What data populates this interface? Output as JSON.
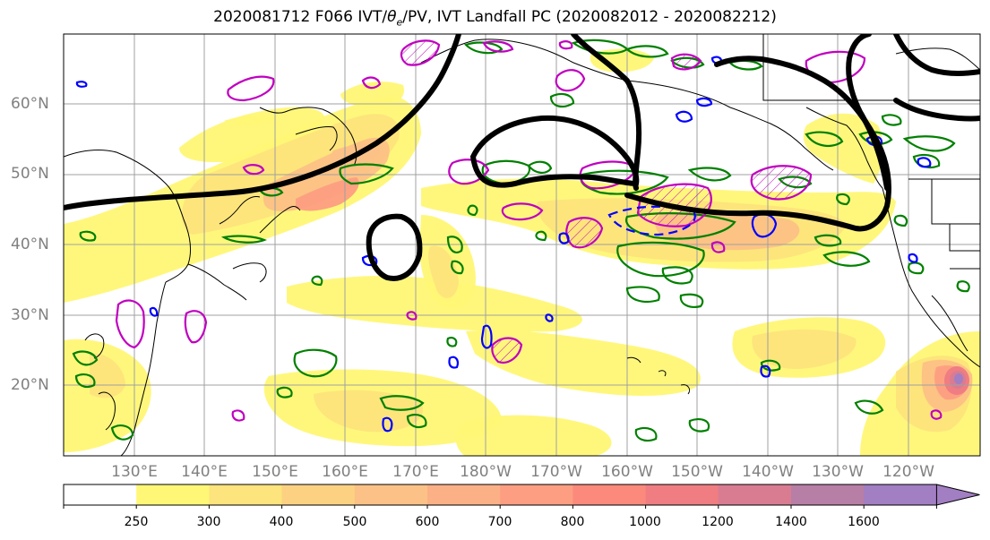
{
  "title": "2020081712 F066 IVT/θe/PV, IVT Landfall PC (2020082012 - 2020082212)",
  "title_parts": {
    "pre": "2020081712 F066 IVT/",
    "theta": "θ",
    "sub": "e",
    "post": "/PV, IVT Landfall PC (2020082012 - 2020082212)"
  },
  "latitude_labels": [
    "60°N",
    "50°N",
    "40°N",
    "30°N",
    "20°N"
  ],
  "longitude_labels": [
    "130°E",
    "140°E",
    "150°E",
    "160°E",
    "170°E",
    "180°W",
    "170°W",
    "160°W",
    "150°W",
    "140°W",
    "130°W",
    "120°W"
  ],
  "colorbar": {
    "ticks": [
      "250",
      "300",
      "400",
      "500",
      "600",
      "700",
      "800",
      "1000",
      "1200",
      "1400",
      "1600"
    ],
    "colors": [
      "#ffffff",
      "#fff775",
      "#fde47c",
      "#fcd282",
      "#fcc186",
      "#fcb086",
      "#fd9e82",
      "#fc8a7c",
      "#ef7d82",
      "#d97c92",
      "#b77ea6",
      "#a27ec2"
    ]
  },
  "legend_colors": {
    "ivt_landfall_pc": "#000000",
    "theta_e": "#008000",
    "pv_positive": "#c000c0",
    "pv_negative": "#0000ff"
  }
}
